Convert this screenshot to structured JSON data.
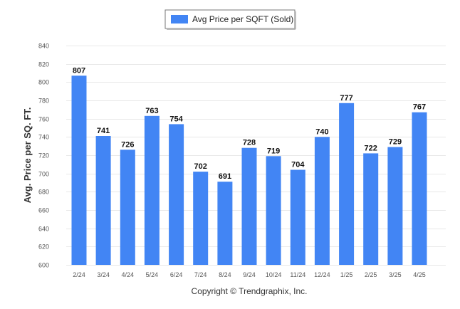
{
  "legend": {
    "label": "Avg Price per SQFT (Sold)"
  },
  "footer": {
    "copyright": "Copyright © Trendgraphix, Inc."
  },
  "colors": {
    "bar": "#4285f4",
    "grid": "#e8e8e8",
    "legend_swatch": "#4285f4"
  },
  "chart_data": {
    "type": "bar",
    "title": "",
    "xlabel": "",
    "ylabel": "Avg. Price per SQ. FT.",
    "ylim": [
      600,
      840
    ],
    "yticks": [
      600,
      620,
      640,
      660,
      680,
      700,
      720,
      740,
      760,
      780,
      800,
      820,
      840
    ],
    "grid": true,
    "legend_position": "top-center",
    "categories": [
      "2/24",
      "3/24",
      "4/24",
      "5/24",
      "6/24",
      "7/24",
      "8/24",
      "9/24",
      "10/24",
      "11/24",
      "12/24",
      "1/25",
      "2/25",
      "3/25",
      "4/25"
    ],
    "series": [
      {
        "name": "Avg Price per SQFT (Sold)",
        "values": [
          807,
          741,
          726,
          763,
          754,
          702,
          691,
          728,
          719,
          704,
          740,
          777,
          722,
          729,
          767
        ]
      }
    ]
  }
}
